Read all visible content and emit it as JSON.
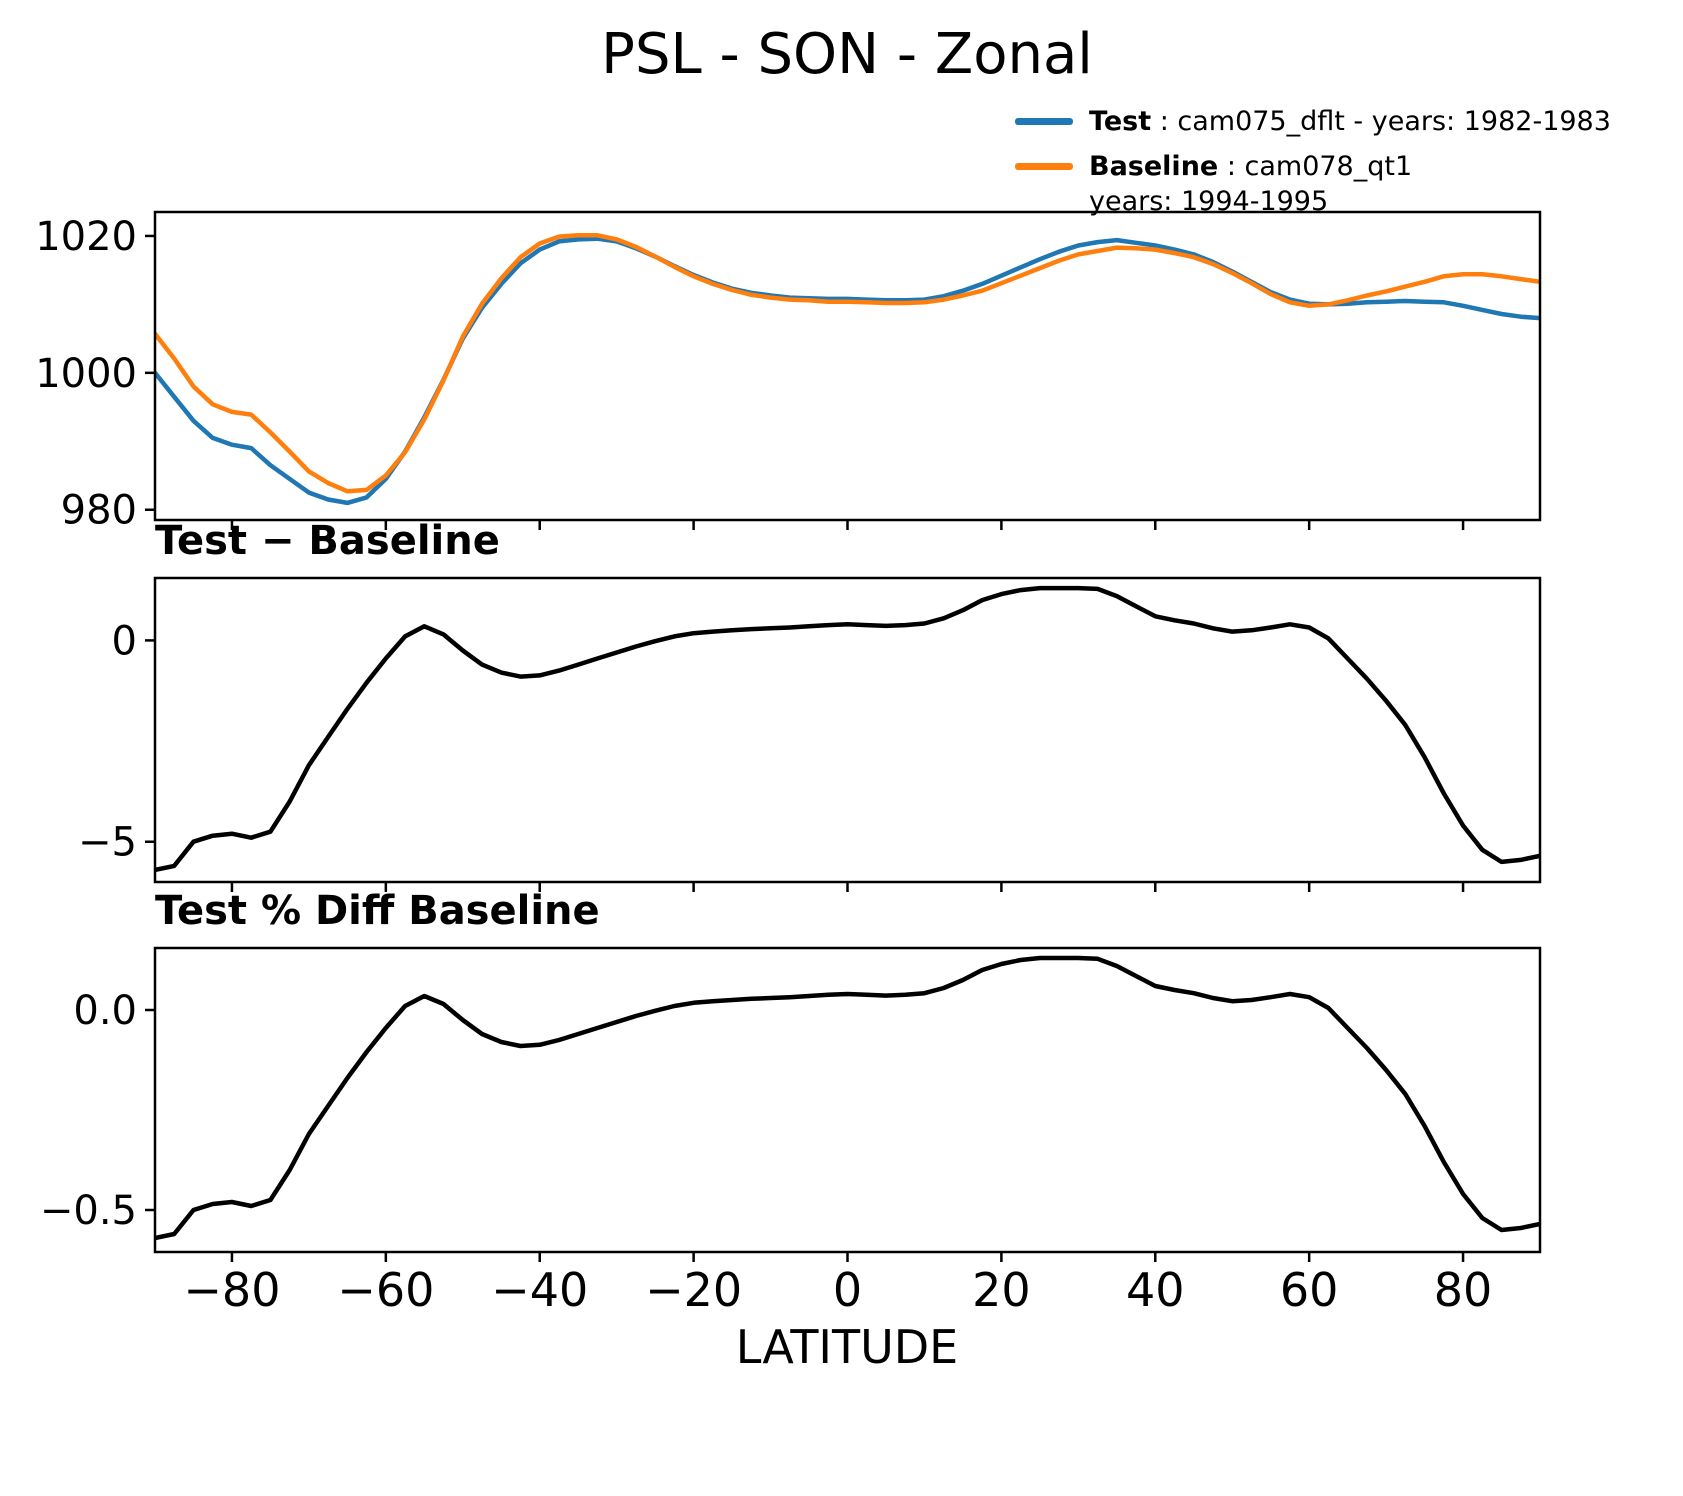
{
  "title": "PSL - SON - Zonal",
  "legend": {
    "test_label": "Test",
    "test_desc": " : cam075_dflt - years: 1982-1983",
    "baseline_label": "Baseline",
    "baseline_desc": " : cam078_qt1",
    "baseline_years": "years: 1994-1995",
    "test_color": "#1f77b4",
    "baseline_color": "#ff7f0e",
    "diff_color": "#000000"
  },
  "chart_data": {
    "type": "line",
    "xlabel": "LATITUDE",
    "xlim": [
      -90,
      90
    ],
    "xticks": [
      -80,
      -60,
      -40,
      -20,
      0,
      20,
      40,
      60,
      80
    ],
    "xtick_labels": [
      "−80",
      "−60",
      "−40",
      "−20",
      "0",
      "20",
      "40",
      "60",
      "80"
    ],
    "x": [
      -90,
      -87.5,
      -85,
      -82.5,
      -80,
      -77.5,
      -75,
      -72.5,
      -70,
      -67.5,
      -65,
      -62.5,
      -60,
      -57.5,
      -55,
      -52.5,
      -50,
      -47.5,
      -45,
      -42.5,
      -40,
      -37.5,
      -35,
      -32.5,
      -30,
      -27.5,
      -25,
      -22.5,
      -20,
      -17.5,
      -15,
      -12.5,
      -10,
      -7.5,
      -5,
      -2.5,
      0,
      2.5,
      5,
      7.5,
      10,
      12.5,
      15,
      17.5,
      20,
      22.5,
      25,
      27.5,
      30,
      32.5,
      35,
      37.5,
      40,
      42.5,
      45,
      47.5,
      50,
      52.5,
      55,
      57.5,
      60,
      62.5,
      65,
      67.5,
      70,
      72.5,
      75,
      77.5,
      80,
      82.5,
      85,
      87.5,
      90
    ],
    "panels": [
      {
        "name": "psl-zonal-mean",
        "title": "",
        "ylim": [
          978.5,
          1023.5
        ],
        "yticks": [
          980,
          1000,
          1020
        ],
        "ytick_labels": [
          "980",
          "1000",
          "1020"
        ],
        "series": [
          {
            "id": "test-line",
            "name": "Test",
            "color": "#1f77b4",
            "values": [
              1000,
              996.5,
              993,
              990.5,
              989.5,
              989,
              986.5,
              984.5,
              982.5,
              981.5,
              981,
              981.8,
              984.5,
              988.5,
              993.5,
              999,
              1005,
              1009.5,
              1013,
              1016,
              1018,
              1019.2,
              1019.5,
              1019.6,
              1019.2,
              1018.2,
              1017,
              1015.6,
              1014.3,
              1013.2,
              1012.3,
              1011.7,
              1011.3,
              1011,
              1010.9,
              1010.8,
              1010.8,
              1010.7,
              1010.6,
              1010.6,
              1010.7,
              1011.2,
              1012,
              1013,
              1014.2,
              1015.4,
              1016.6,
              1017.7,
              1018.6,
              1019.1,
              1019.4,
              1019,
              1018.6,
              1018,
              1017.3,
              1016.2,
              1014.8,
              1013.3,
              1011.8,
              1010.7,
              1010.1,
              1010,
              1010.1,
              1010.3,
              1010.4,
              1010.5,
              1010.4,
              1010.3,
              1009.8,
              1009.2,
              1008.6,
              1008.2,
              1008
            ]
          },
          {
            "id": "baseline-line",
            "name": "Baseline",
            "color": "#ff7f0e",
            "values": [
              1005.7,
              1002.1,
              998,
              995.4,
              994.3,
              993.9,
              991.3,
              988.5,
              985.6,
              983.9,
              982.7,
              982.9,
              985,
              988.4,
              993.2,
              998.9,
              1005.3,
              1010.1,
              1013.8,
              1016.9,
              1018.9,
              1019.9,
              1020.1,
              1020.1,
              1019.5,
              1018.4,
              1017,
              1015.5,
              1014.1,
              1013,
              1012.1,
              1011.4,
              1011,
              1010.7,
              1010.6,
              1010.4,
              1010.4,
              1010.3,
              1010.2,
              1010.2,
              1010.3,
              1010.7,
              1011.3,
              1012,
              1013.1,
              1014.2,
              1015.3,
              1016.4,
              1017.3,
              1017.8,
              1018.3,
              1018.2,
              1018,
              1017.5,
              1016.9,
              1015.9,
              1014.6,
              1013.1,
              1011.5,
              1010.3,
              1009.8,
              1010,
              1010.6,
              1011.3,
              1011.9,
              1012.6,
              1013.3,
              1014.1,
              1014.4,
              1014.4,
              1014.1,
              1013.7,
              1013.3
            ]
          }
        ]
      },
      {
        "name": "test-minus-baseline",
        "title": "Test − Baseline",
        "ylim": [
          -6.0,
          1.55
        ],
        "yticks": [
          0,
          -5
        ],
        "ytick_labels": [
          "0",
          "−5"
        ],
        "series": [
          {
            "id": "diff-line",
            "name": "Test − Baseline",
            "color": "#000000",
            "values": [
              -5.7,
              -5.6,
              -5,
              -4.85,
              -4.8,
              -4.9,
              -4.75,
              -4,
              -3.1,
              -2.4,
              -1.7,
              -1.05,
              -0.45,
              0.1,
              0.35,
              0.15,
              -0.25,
              -0.6,
              -0.8,
              -0.9,
              -0.87,
              -0.75,
              -0.6,
              -0.45,
              -0.3,
              -0.15,
              -0.02,
              0.1,
              0.18,
              0.22,
              0.25,
              0.28,
              0.3,
              0.32,
              0.35,
              0.38,
              0.4,
              0.38,
              0.36,
              0.38,
              0.42,
              0.55,
              0.75,
              1,
              1.15,
              1.25,
              1.3,
              1.3,
              1.3,
              1.28,
              1.1,
              0.85,
              0.6,
              0.5,
              0.42,
              0.3,
              0.22,
              0.25,
              0.32,
              0.4,
              0.32,
              0.05,
              -0.45,
              -0.95,
              -1.5,
              -2.1,
              -2.9,
              -3.8,
              -4.6,
              -5.2,
              -5.5,
              -5.45,
              -5.35
            ]
          }
        ]
      },
      {
        "name": "test-pct-diff-baseline",
        "title": "Test % Diff Baseline",
        "ylim": [
          -0.605,
          0.155
        ],
        "yticks": [
          0.0,
          -0.5
        ],
        "ytick_labels": [
          "0.0",
          "−0.5"
        ],
        "series": [
          {
            "id": "pct-diff-line",
            "name": "Test % Diff Baseline",
            "color": "#000000",
            "values": [
              -0.57,
              -0.56,
              -0.5,
              -0.485,
              -0.48,
              -0.49,
              -0.475,
              -0.4,
              -0.31,
              -0.24,
              -0.17,
              -0.105,
              -0.045,
              0.01,
              0.035,
              0.015,
              -0.025,
              -0.06,
              -0.08,
              -0.09,
              -0.087,
              -0.075,
              -0.06,
              -0.045,
              -0.03,
              -0.015,
              -0.002,
              0.01,
              0.018,
              0.022,
              0.025,
              0.028,
              0.03,
              0.032,
              0.035,
              0.038,
              0.04,
              0.038,
              0.036,
              0.038,
              0.042,
              0.055,
              0.075,
              0.1,
              0.115,
              0.125,
              0.13,
              0.13,
              0.13,
              0.128,
              0.11,
              0.085,
              0.06,
              0.05,
              0.042,
              0.03,
              0.022,
              0.025,
              0.032,
              0.04,
              0.032,
              0.005,
              -0.045,
              -0.095,
              -0.15,
              -0.21,
              -0.29,
              -0.38,
              -0.46,
              -0.52,
              -0.55,
              -0.545,
              -0.535
            ]
          }
        ]
      }
    ]
  }
}
